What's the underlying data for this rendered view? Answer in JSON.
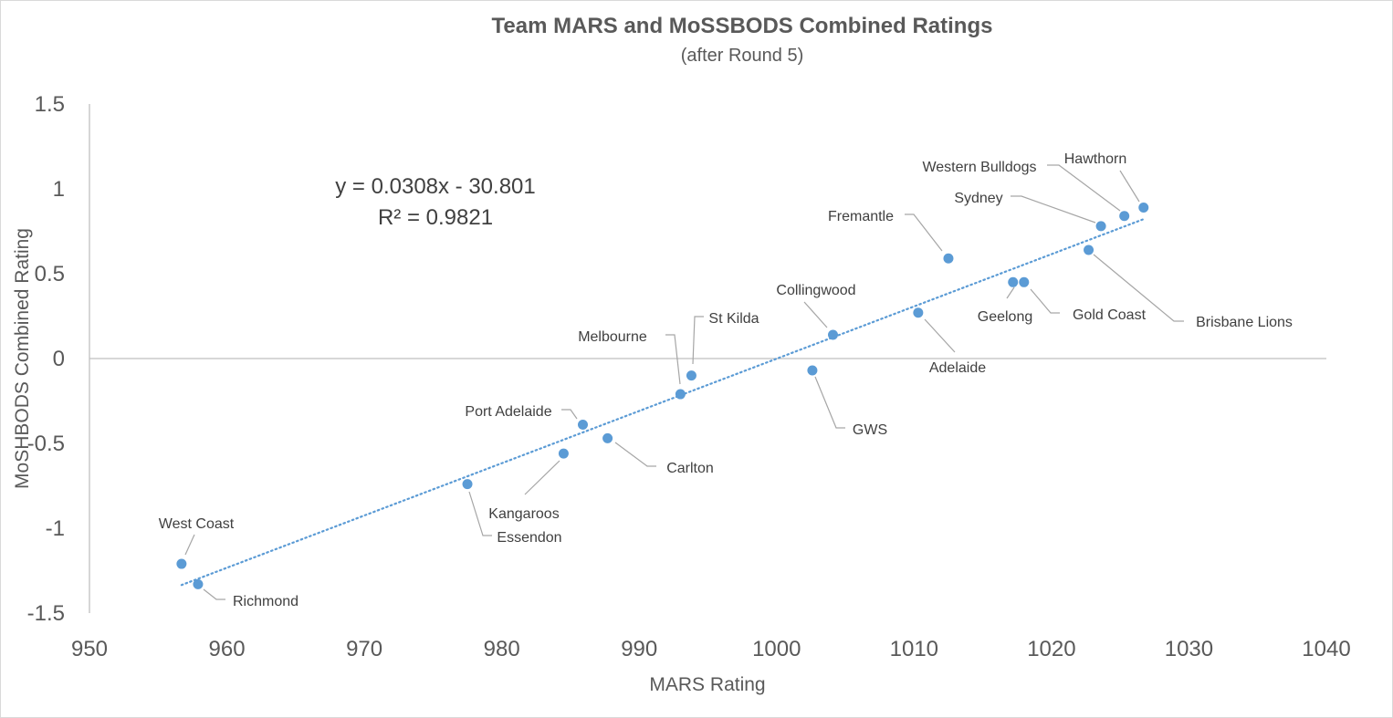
{
  "chart_data": {
    "type": "scatter",
    "title": "Team MARS and MoSSBODS Combined Ratings",
    "subtitle": "(after Round 5)",
    "xlabel": "MARS Rating",
    "ylabel": "MoSHBODS Combined Rating",
    "xlim": [
      950,
      1040
    ],
    "ylim": [
      -1.5,
      1.5
    ],
    "xticks": [
      "950",
      "960",
      "970",
      "980",
      "990",
      "1000",
      "1010",
      "1020",
      "1030",
      "1040"
    ],
    "yticks": [
      "1.5",
      "1",
      "0.5",
      "0",
      "-0.5",
      "-1",
      "-1.5"
    ],
    "grid": false,
    "legend": "none",
    "marker_color": "#5b9bd5",
    "trendline": {
      "type": "linear",
      "slope": 0.0308,
      "intercept": -30.801,
      "x_range": [
        956.7,
        1026.7
      ],
      "equation_text": "y = 0.0308x - 30.801",
      "r2_text": "R² = 0.9821"
    },
    "points": [
      {
        "label": "Hawthorn",
        "x": 1026.7,
        "y": 0.89
      },
      {
        "label": "Western Bulldogs",
        "x": 1025.3,
        "y": 0.84
      },
      {
        "label": "Sydney",
        "x": 1023.6,
        "y": 0.78
      },
      {
        "label": "Brisbane Lions",
        "x": 1022.7,
        "y": 0.64
      },
      {
        "label": "Gold Coast",
        "x": 1018.0,
        "y": 0.45
      },
      {
        "label": "Geelong",
        "x": 1017.2,
        "y": 0.45
      },
      {
        "label": "Fremantle",
        "x": 1012.5,
        "y": 0.59
      },
      {
        "label": "Adelaide",
        "x": 1010.3,
        "y": 0.27
      },
      {
        "label": "Collingwood",
        "x": 1004.1,
        "y": 0.14
      },
      {
        "label": "GWS",
        "x": 1002.6,
        "y": -0.07
      },
      {
        "label": "St Kilda",
        "x": 993.8,
        "y": -0.1
      },
      {
        "label": "Melbourne",
        "x": 993.0,
        "y": -0.21
      },
      {
        "label": "Carlton",
        "x": 987.7,
        "y": -0.47
      },
      {
        "label": "Port Adelaide",
        "x": 985.9,
        "y": -0.39
      },
      {
        "label": "Kangaroos",
        "x": 984.5,
        "y": -0.56
      },
      {
        "label": "Essendon",
        "x": 977.5,
        "y": -0.74
      },
      {
        "label": "Richmond",
        "x": 957.9,
        "y": -1.33
      },
      {
        "label": "West Coast",
        "x": 956.7,
        "y": -1.21
      }
    ]
  }
}
